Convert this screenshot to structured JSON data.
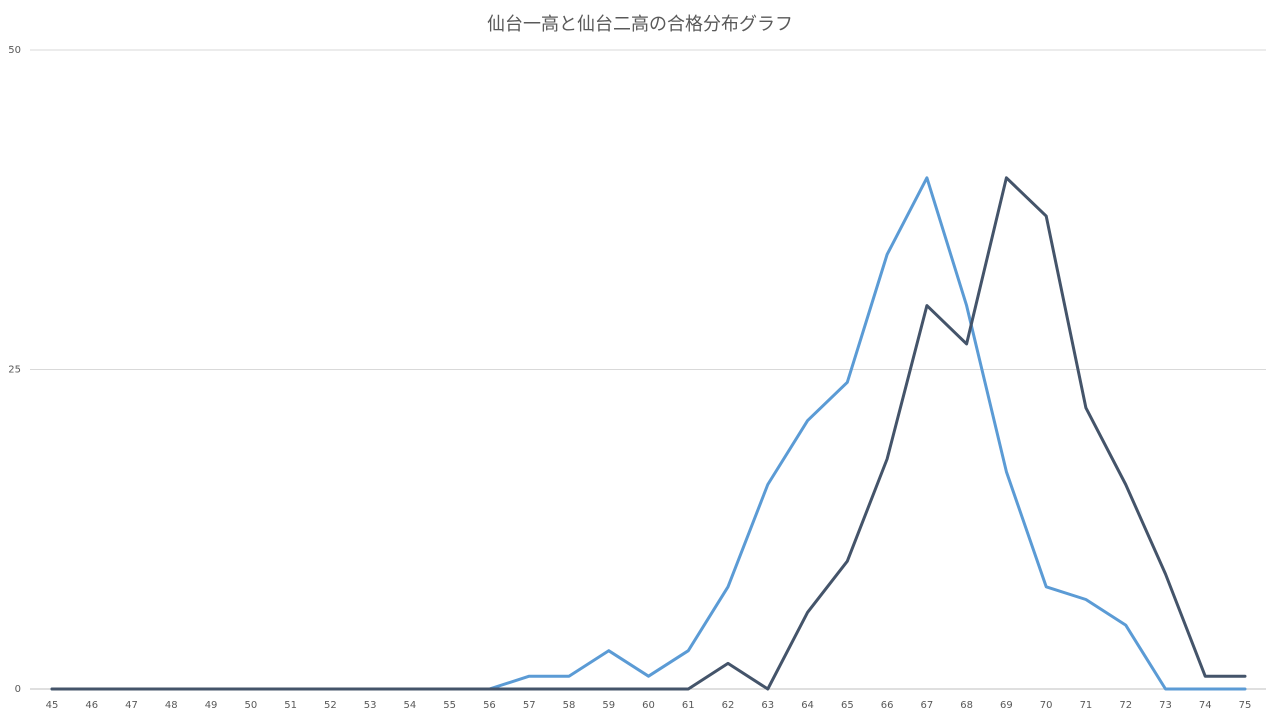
{
  "chart_data": {
    "type": "line",
    "title": "仙台一高と仙台二高の合格分布グラフ",
    "xlabel": "",
    "ylabel": "",
    "x": [
      45,
      46,
      47,
      48,
      49,
      50,
      51,
      52,
      53,
      54,
      55,
      56,
      57,
      58,
      59,
      60,
      61,
      62,
      63,
      64,
      65,
      66,
      67,
      68,
      69,
      70,
      71,
      72,
      73,
      74,
      75
    ],
    "ylim": [
      0,
      50
    ],
    "yticks": [
      0,
      25,
      50
    ],
    "grid": true,
    "legend": "none",
    "series": [
      {
        "color": "#5b9bd5",
        "values": [
          0,
          0,
          0,
          0,
          0,
          0,
          0,
          0,
          0,
          0,
          0,
          0,
          1,
          1,
          3,
          1,
          3,
          8,
          16,
          21,
          24,
          34,
          40,
          30,
          17,
          8,
          7,
          5,
          0,
          0,
          0
        ]
      },
      {
        "color": "#44546a",
        "values": [
          0,
          0,
          0,
          0,
          0,
          0,
          0,
          0,
          0,
          0,
          0,
          0,
          0,
          0,
          0,
          0,
          0,
          2,
          0,
          6,
          10,
          18,
          30,
          27,
          40,
          37,
          22,
          16,
          9,
          1,
          1
        ]
      }
    ]
  }
}
